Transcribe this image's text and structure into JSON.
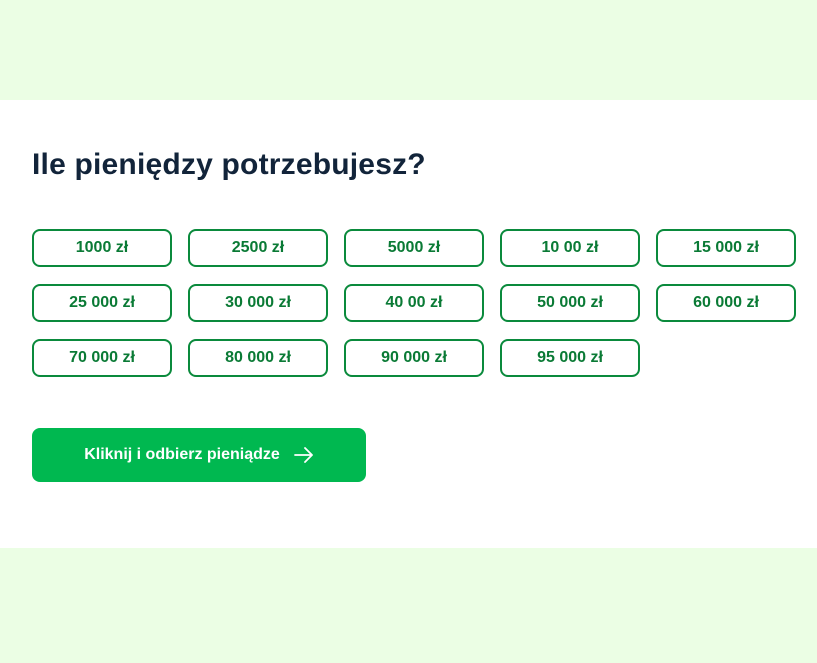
{
  "title": "Ile pieniędzy potrzebujesz?",
  "amounts": [
    "1000 zł",
    "2500 zł",
    "5000 zł",
    "10 00 zł",
    "15 000 zł",
    "25 000 zł",
    "30 000 zł",
    "40 00 zł",
    "50 000 zł",
    "60 000 zł",
    "70 000 zł",
    "80 000 zł",
    "90 000 zł",
    "95 000 zł"
  ],
  "cta": {
    "label": "Kliknij i odbierz pieniądze",
    "icon": "arrow-right-icon"
  },
  "colors": {
    "background": "#ebfee4",
    "accent": "#00b850",
    "border": "#0a8a3c",
    "title": "#12243a"
  }
}
